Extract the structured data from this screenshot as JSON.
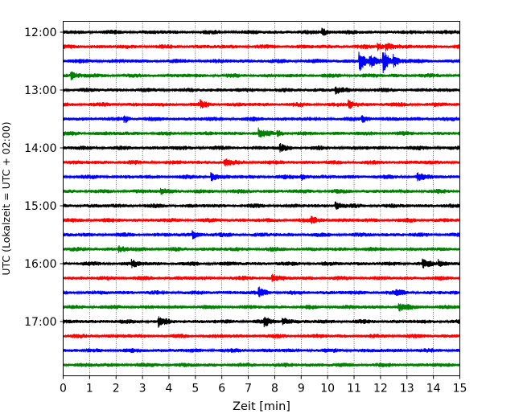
{
  "chart_data": {
    "type": "line",
    "title": "",
    "xlabel": "Zeit  [min]",
    "ylabel": "UTC (Lokalzeit = UTC + 02:00)",
    "xlim": [
      0,
      15
    ],
    "x_ticks": [
      "0",
      "1",
      "2",
      "3",
      "4",
      "5",
      "6",
      "7",
      "8",
      "9",
      "10",
      "11",
      "12",
      "13",
      "14",
      "15"
    ],
    "y_ticks": [
      "12:00",
      "13:00",
      "14:00",
      "15:00",
      "16:00",
      "17:00"
    ],
    "grid": "vertical dotted",
    "color_cycle": [
      "#000000",
      "#ff0000",
      "#0000ff",
      "#008000"
    ],
    "traces": [
      {
        "start": "12:00",
        "color": "#000000",
        "events": [
          {
            "t": 9.8,
            "amp": 1.3
          }
        ]
      },
      {
        "start": "12:15",
        "color": "#ff0000",
        "events": [
          {
            "t": 11.9,
            "amp": 1.3
          },
          {
            "t": 12.2,
            "amp": 1.4
          }
        ]
      },
      {
        "start": "12:30",
        "color": "#0000ff",
        "events": [
          {
            "t": 11.2,
            "amp": 4.0
          },
          {
            "t": 11.6,
            "amp": 2.0
          },
          {
            "t": 12.1,
            "amp": 4.2
          },
          {
            "t": 12.5,
            "amp": 1.8
          }
        ]
      },
      {
        "start": "12:45",
        "color": "#008000",
        "events": [
          {
            "t": 0.3,
            "amp": 1.2
          }
        ]
      },
      {
        "start": "13:00",
        "color": "#000000",
        "events": [
          {
            "t": 10.3,
            "amp": 1.2
          }
        ]
      },
      {
        "start": "13:15",
        "color": "#ff0000",
        "events": [
          {
            "t": 5.2,
            "amp": 1.2
          },
          {
            "t": 10.8,
            "amp": 1.4
          }
        ]
      },
      {
        "start": "13:30",
        "color": "#0000ff",
        "events": [
          {
            "t": 2.3,
            "amp": 1.3
          },
          {
            "t": 11.3,
            "amp": 1.4
          }
        ]
      },
      {
        "start": "13:45",
        "color": "#008000",
        "events": [
          {
            "t": 7.4,
            "amp": 1.8
          },
          {
            "t": 8.1,
            "amp": 1.3
          }
        ]
      },
      {
        "start": "14:00",
        "color": "#000000",
        "events": [
          {
            "t": 8.2,
            "amp": 1.2
          }
        ]
      },
      {
        "start": "14:15",
        "color": "#ff0000",
        "events": [
          {
            "t": 6.1,
            "amp": 1.2
          }
        ]
      },
      {
        "start": "14:30",
        "color": "#0000ff",
        "events": [
          {
            "t": 5.6,
            "amp": 1.4
          },
          {
            "t": 9.0,
            "amp": 1.2
          },
          {
            "t": 13.4,
            "amp": 1.2
          }
        ]
      },
      {
        "start": "14:45",
        "color": "#008000",
        "events": [
          {
            "t": 3.7,
            "amp": 1.2
          }
        ]
      },
      {
        "start": "15:00",
        "color": "#000000",
        "events": [
          {
            "t": 10.3,
            "amp": 1.4
          }
        ]
      },
      {
        "start": "15:15",
        "color": "#ff0000",
        "events": [
          {
            "t": 9.4,
            "amp": 1.2
          }
        ]
      },
      {
        "start": "15:30",
        "color": "#0000ff",
        "events": [
          {
            "t": 4.9,
            "amp": 1.3
          }
        ]
      },
      {
        "start": "15:45",
        "color": "#008000",
        "events": [
          {
            "t": 2.1,
            "amp": 1.2
          }
        ]
      },
      {
        "start": "16:00",
        "color": "#000000",
        "events": [
          {
            "t": 2.6,
            "amp": 1.3
          },
          {
            "t": 13.6,
            "amp": 1.4
          },
          {
            "t": 14.2,
            "amp": 1.3
          }
        ]
      },
      {
        "start": "16:15",
        "color": "#ff0000",
        "events": [
          {
            "t": 7.9,
            "amp": 1.2
          }
        ]
      },
      {
        "start": "16:30",
        "color": "#0000ff",
        "events": [
          {
            "t": 7.4,
            "amp": 1.6
          },
          {
            "t": 12.6,
            "amp": 1.3
          }
        ]
      },
      {
        "start": "16:45",
        "color": "#008000",
        "events": [
          {
            "t": 12.7,
            "amp": 1.3
          }
        ]
      },
      {
        "start": "17:00",
        "color": "#000000",
        "events": [
          {
            "t": 3.6,
            "amp": 1.6
          },
          {
            "t": 7.6,
            "amp": 1.5
          },
          {
            "t": 8.3,
            "amp": 1.4
          }
        ]
      },
      {
        "start": "17:15",
        "color": "#ff0000",
        "events": []
      },
      {
        "start": "17:30",
        "color": "#0000ff",
        "events": []
      },
      {
        "start": "17:45",
        "color": "#008000",
        "events": []
      }
    ]
  }
}
